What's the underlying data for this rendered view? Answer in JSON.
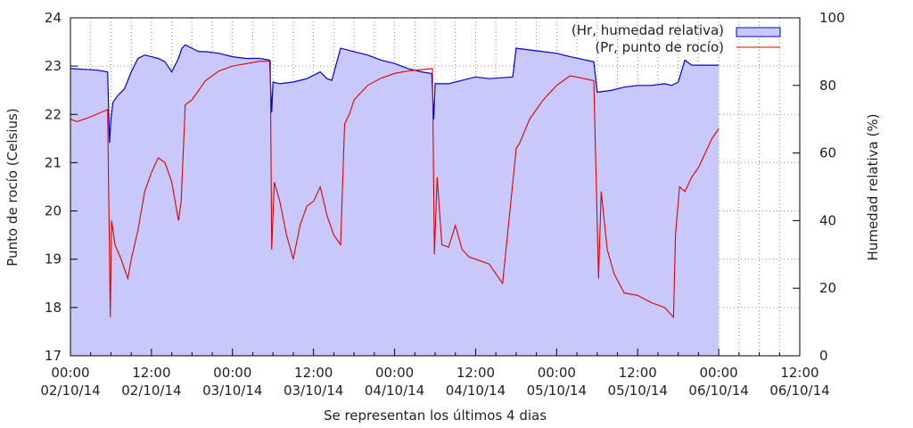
{
  "chart_data": {
    "type": "line",
    "xlabel": "Se representan los últimos 4 dias",
    "ylabel_left": "Punto de rocío (Celsius)",
    "ylabel_right": "Humedad relativa (%)",
    "ylim_left": [
      17,
      24
    ],
    "ylim_right": [
      0,
      100
    ],
    "xlim_hours": [
      0,
      108
    ],
    "grid": true,
    "legend_position": "top-right",
    "left_ticks": [
      "17",
      "18",
      "19",
      "20",
      "21",
      "22",
      "23",
      "24"
    ],
    "right_ticks": [
      "0",
      "20",
      "40",
      "60",
      "80",
      "100"
    ],
    "x_ticks": [
      {
        "time": "00:00",
        "date": "02/10/14"
      },
      {
        "time": "12:00",
        "date": "02/10/14"
      },
      {
        "time": "00:00",
        "date": "03/10/14"
      },
      {
        "time": "12:00",
        "date": "03/10/14"
      },
      {
        "time": "00:00",
        "date": "04/10/14"
      },
      {
        "time": "12:00",
        "date": "04/10/14"
      },
      {
        "time": "00:00",
        "date": "05/10/14"
      },
      {
        "time": "12:00",
        "date": "05/10/14"
      },
      {
        "time": "00:00",
        "date": "06/10/14"
      },
      {
        "time": "12:00",
        "date": "06/10/14"
      }
    ],
    "series": [
      {
        "name": "(Hr, humedad relativa)",
        "axis": "right",
        "style": "filled-area",
        "color": "#0000cc",
        "fill": "#c8c8fa",
        "x_hours": [
          0,
          4,
          5.5,
          5.8,
          6,
          6.3,
          7,
          8,
          9,
          10,
          11,
          12,
          13,
          14,
          15,
          16,
          16.5,
          17,
          18,
          19,
          20,
          22,
          24,
          26,
          28,
          29.5,
          29.8,
          30,
          31,
          33,
          35,
          37,
          38,
          38.7,
          40,
          42,
          44,
          46,
          48,
          50,
          52,
          53.5,
          53.8,
          54,
          56,
          58,
          60,
          62,
          65.5,
          66,
          68,
          70,
          72,
          74,
          77.5,
          78,
          80,
          82,
          84,
          86,
          88,
          89,
          90,
          91,
          92,
          94,
          96
        ],
        "values": [
          85,
          84.5,
          84,
          63,
          70,
          75,
          77,
          79,
          84,
          88,
          89,
          88.5,
          88,
          87,
          84,
          88,
          91,
          92,
          91,
          90,
          90,
          89.5,
          88.5,
          88,
          88,
          87.5,
          72,
          81,
          80.5,
          81,
          82,
          84,
          82,
          81.5,
          91,
          90,
          89,
          87.5,
          86.5,
          85,
          84,
          83.5,
          70,
          80.5,
          80.5,
          81.5,
          82.5,
          82,
          82.5,
          91,
          90.5,
          90,
          89.5,
          88.5,
          87,
          78,
          78.5,
          79.5,
          80,
          80,
          80.5,
          80,
          81,
          87.5,
          86,
          86,
          86
        ]
      },
      {
        "name": "(Pr, punto de rocío)",
        "axis": "left",
        "style": "line",
        "color": "#e00000",
        "x_hours": [
          0,
          1,
          3,
          5.5,
          5.9,
          6.1,
          6.6,
          7.5,
          8.5,
          9,
          10,
          11,
          12,
          13,
          14,
          15,
          16,
          16.4,
          17,
          18,
          20,
          22,
          24,
          26,
          28,
          29.6,
          29.8,
          30.2,
          31,
          32,
          33,
          34,
          35,
          36,
          37,
          38,
          39,
          40,
          40.6,
          41.3,
          42,
          44,
          46,
          48,
          50,
          53.6,
          53.9,
          54.3,
          55,
          56,
          57,
          58,
          59,
          60,
          62,
          64,
          65.8,
          66,
          66.5,
          68,
          70,
          72,
          74,
          77.5,
          78.2,
          78.6,
          79.5,
          80.5,
          82,
          84,
          86,
          88,
          89.3,
          89.6,
          90.2,
          91,
          92,
          93,
          94,
          95,
          96
        ],
        "values": [
          21.9,
          21.85,
          21.95,
          22.1,
          17.8,
          19.8,
          19.3,
          19.0,
          18.6,
          19.0,
          19.6,
          20.4,
          20.8,
          21.1,
          21.0,
          20.6,
          19.8,
          20.2,
          22.2,
          22.3,
          22.7,
          22.9,
          23.0,
          23.05,
          23.1,
          23.1,
          19.2,
          20.6,
          20.2,
          19.5,
          19.0,
          19.7,
          20.1,
          20.2,
          20.5,
          19.9,
          19.5,
          19.3,
          21.8,
          22.0,
          22.3,
          22.6,
          22.75,
          22.85,
          22.9,
          22.95,
          19.1,
          20.7,
          19.3,
          19.25,
          19.7,
          19.2,
          19.05,
          19.0,
          18.9,
          18.5,
          21.0,
          21.3,
          21.4,
          21.9,
          22.3,
          22.6,
          22.8,
          22.7,
          18.6,
          20.4,
          19.2,
          18.7,
          18.3,
          18.25,
          18.1,
          18.0,
          17.8,
          19.5,
          20.5,
          20.4,
          20.7,
          20.9,
          21.2,
          21.5,
          21.7
        ]
      }
    ]
  }
}
